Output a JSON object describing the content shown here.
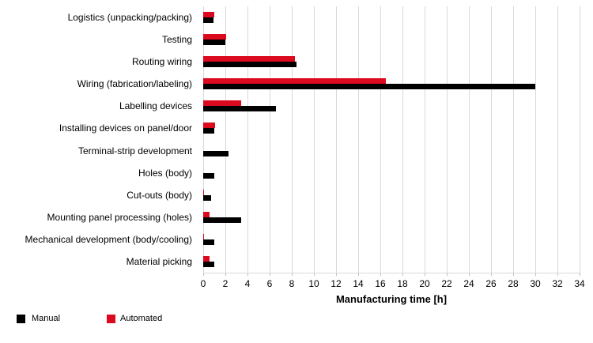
{
  "chart_data": {
    "type": "bar",
    "orientation": "horizontal",
    "title": "",
    "xlabel": "Manufacturing time [h]",
    "ylabel": "",
    "xlim": [
      0,
      34
    ],
    "xticks": [
      0,
      2,
      4,
      6,
      8,
      10,
      12,
      14,
      16,
      18,
      20,
      22,
      24,
      26,
      28,
      30,
      32,
      34
    ],
    "grid": true,
    "legend_position": "bottom-left",
    "categories": [
      "Logistics (unpacking/packing)",
      "Testing",
      "Routing wiring",
      "Wiring (fabrication/labeling)",
      "Labelling devices",
      "Installing devices on panel/door",
      "Terminal-strip development",
      "Holes (body)",
      "Cut-outs (body)",
      "Mounting panel processing (holes)",
      "Mechanical development (body/cooling)",
      "Material picking"
    ],
    "series": [
      {
        "name": "Manual",
        "color": "#000000",
        "values": [
          0.9,
          2.0,
          8.4,
          30.0,
          6.6,
          1.0,
          2.3,
          1.0,
          0.7,
          3.4,
          1.0,
          1.0
        ]
      },
      {
        "name": "Automated",
        "color": "#dc0a1e",
        "values": [
          1.0,
          2.1,
          8.3,
          16.5,
          3.4,
          1.1,
          0,
          0,
          0.1,
          0.6,
          0.1,
          0.6
        ]
      }
    ]
  },
  "colors": {
    "gridline": "#d9d9d9",
    "tick": "#bfbfbf",
    "text": "#000000",
    "background": "#ffffff"
  }
}
